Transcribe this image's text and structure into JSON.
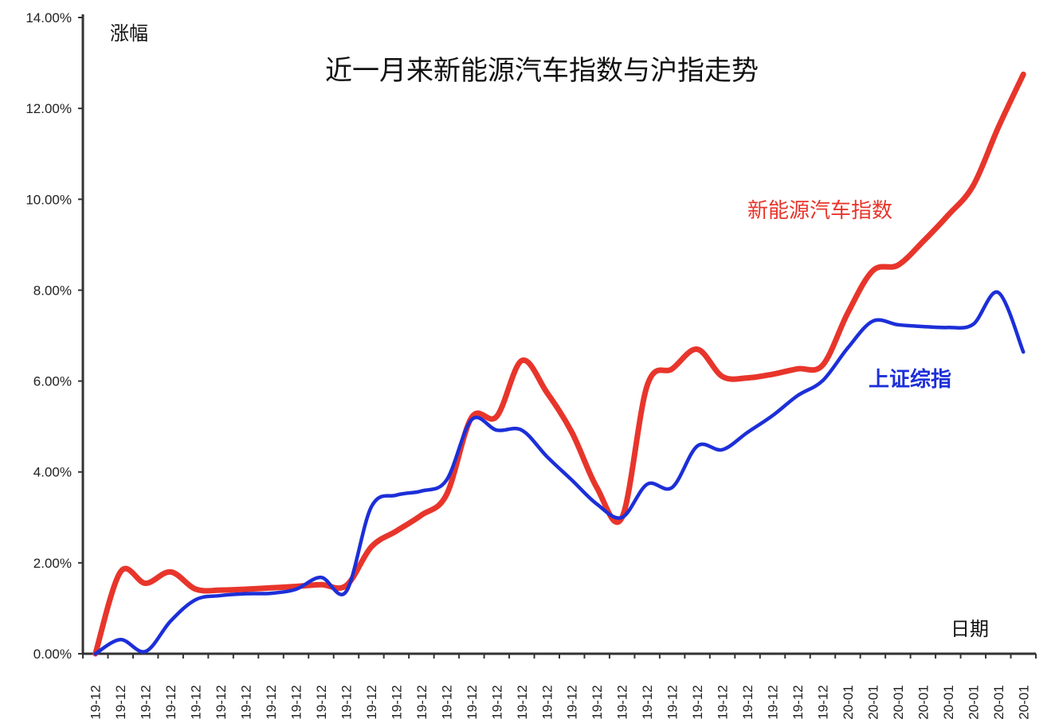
{
  "chart_data": {
    "type": "line",
    "title": "近一月来新能源汽车指数与沪指走势",
    "xlabel": "日期",
    "ylabel": "涨幅",
    "ylim": [
      0,
      14
    ],
    "y_ticks": [
      "0.00%",
      "2.00%",
      "4.00%",
      "6.00%",
      "8.00%",
      "10.00%",
      "12.00%",
      "14.00%"
    ],
    "grid": false,
    "categories": [
      "19-12",
      "19-12",
      "19-12",
      "19-12",
      "19-12",
      "19-12",
      "19-12",
      "19-12",
      "19-12",
      "19-12",
      "19-12",
      "19-12",
      "19-12",
      "19-12",
      "19-12",
      "19-12",
      "19-12",
      "19-12",
      "19-12",
      "19-12",
      "19-12",
      "19-12",
      "19-12",
      "19-12",
      "19-12",
      "19-12",
      "19-12",
      "19-12",
      "19-12",
      "19-12",
      "20-01",
      "20-01",
      "20-01",
      "20-01",
      "20-01",
      "20-01",
      "20-01",
      "20-01"
    ],
    "series": [
      {
        "name": "新能源汽车指数",
        "color": "#e8352b",
        "values": [
          0.0,
          1.8,
          1.55,
          1.8,
          1.42,
          1.4,
          1.42,
          1.45,
          1.48,
          1.52,
          1.5,
          2.35,
          2.7,
          3.05,
          3.5,
          5.2,
          5.22,
          6.45,
          5.75,
          4.87,
          3.65,
          3.0,
          5.9,
          6.27,
          6.7,
          6.1,
          6.07,
          6.15,
          6.27,
          6.35,
          7.5,
          8.43,
          8.55,
          9.07,
          9.65,
          10.3,
          11.58,
          12.75
        ]
      },
      {
        "name": "上证综指",
        "color": "#1c2fd8",
        "values": [
          0.0,
          0.31,
          0.05,
          0.72,
          1.19,
          1.28,
          1.32,
          1.33,
          1.42,
          1.68,
          1.37,
          3.23,
          3.49,
          3.58,
          3.82,
          5.15,
          4.92,
          4.92,
          4.34,
          3.82,
          3.29,
          3.0,
          3.73,
          3.66,
          4.57,
          4.49,
          4.87,
          5.24,
          5.68,
          6.01,
          6.73,
          7.32,
          7.24,
          7.2,
          7.18,
          7.25,
          7.95,
          6.64
        ]
      }
    ]
  }
}
